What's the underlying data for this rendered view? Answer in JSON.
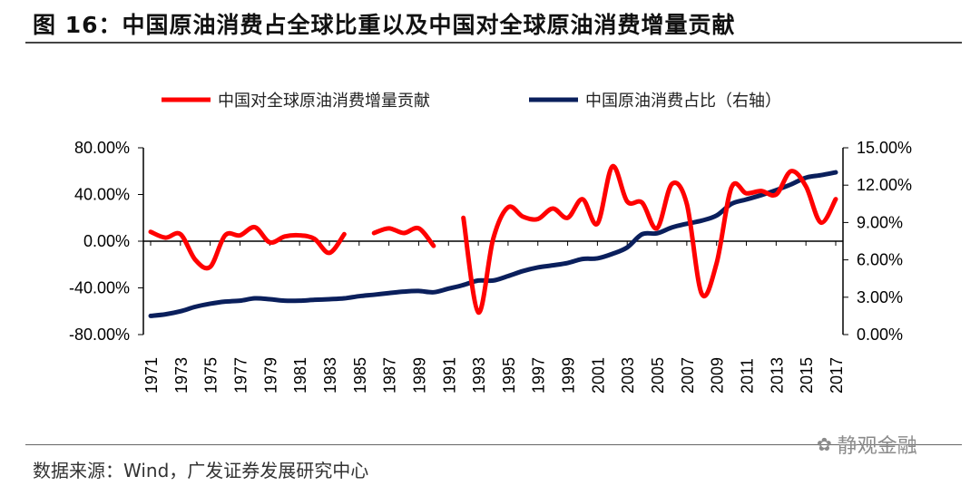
{
  "title": "图 16：中国原油消费占全球比重以及中国对全球原油消费增量贡献",
  "source": "数据来源：Wind，广发证券发展研究中心",
  "watermark": "静观金融",
  "chart_data": {
    "type": "line",
    "title": "",
    "x": [
      1971,
      1972,
      1973,
      1974,
      1975,
      1976,
      1977,
      1978,
      1979,
      1980,
      1981,
      1982,
      1983,
      1984,
      1985,
      1986,
      1987,
      1988,
      1989,
      1990,
      1991,
      1992,
      1993,
      1994,
      1995,
      1996,
      1997,
      1998,
      1999,
      2000,
      2001,
      2002,
      2003,
      2004,
      2005,
      2006,
      2007,
      2008,
      2009,
      2010,
      2011,
      2012,
      2013,
      2014,
      2015,
      2016,
      2017
    ],
    "x_tick_labels": [
      "1971",
      "1973",
      "1975",
      "1977",
      "1979",
      "1981",
      "1983",
      "1985",
      "1987",
      "1989",
      "1991",
      "1993",
      "1995",
      "1997",
      "1999",
      "2001",
      "2003",
      "2005",
      "2007",
      "2009",
      "2011",
      "2013",
      "2015",
      "2017"
    ],
    "y_left": {
      "lim": [
        -80,
        80
      ],
      "ticks": [
        "80.00%",
        "40.00%",
        "0.00%",
        "-40.00%",
        "-80.00%"
      ],
      "tick_values": [
        80,
        40,
        0,
        -40,
        -80
      ]
    },
    "y_right": {
      "lim": [
        0,
        15
      ],
      "ticks": [
        "15.00%",
        "12.00%",
        "9.00%",
        "6.00%",
        "3.00%",
        "0.00%"
      ],
      "tick_values": [
        15,
        12,
        9,
        6,
        3,
        0
      ]
    },
    "grid": false,
    "legend_position": "top",
    "series": [
      {
        "name": "中国对全球原油消费增量贡献",
        "axis": "left",
        "color": "#ff0000",
        "values": [
          8,
          3,
          6,
          -16,
          -22,
          5,
          5,
          12,
          -1,
          4,
          5,
          2,
          -10,
          6,
          null,
          7,
          11,
          7,
          11,
          -4,
          null,
          20,
          -61,
          2,
          29,
          21,
          19,
          28,
          20,
          36,
          15,
          64,
          34,
          33,
          11,
          49,
          32,
          -45,
          -19,
          46,
          41,
          43,
          40,
          60,
          47,
          16,
          36
        ]
      },
      {
        "name": "中国原油消费占比（右轴）",
        "axis": "right",
        "color": "#0a1f5c",
        "values": [
          1.5,
          1.63,
          1.87,
          2.23,
          2.48,
          2.65,
          2.72,
          2.91,
          2.84,
          2.72,
          2.72,
          2.79,
          2.84,
          2.91,
          3.08,
          3.2,
          3.33,
          3.45,
          3.5,
          3.4,
          3.69,
          3.98,
          4.34,
          4.34,
          4.7,
          5.1,
          5.39,
          5.56,
          5.75,
          6.07,
          6.12,
          6.48,
          7.0,
          8.06,
          8.13,
          8.6,
          8.9,
          9.15,
          9.56,
          10.5,
          10.85,
          11.2,
          11.6,
          12.06,
          12.6,
          12.8,
          13.03
        ]
      }
    ]
  }
}
